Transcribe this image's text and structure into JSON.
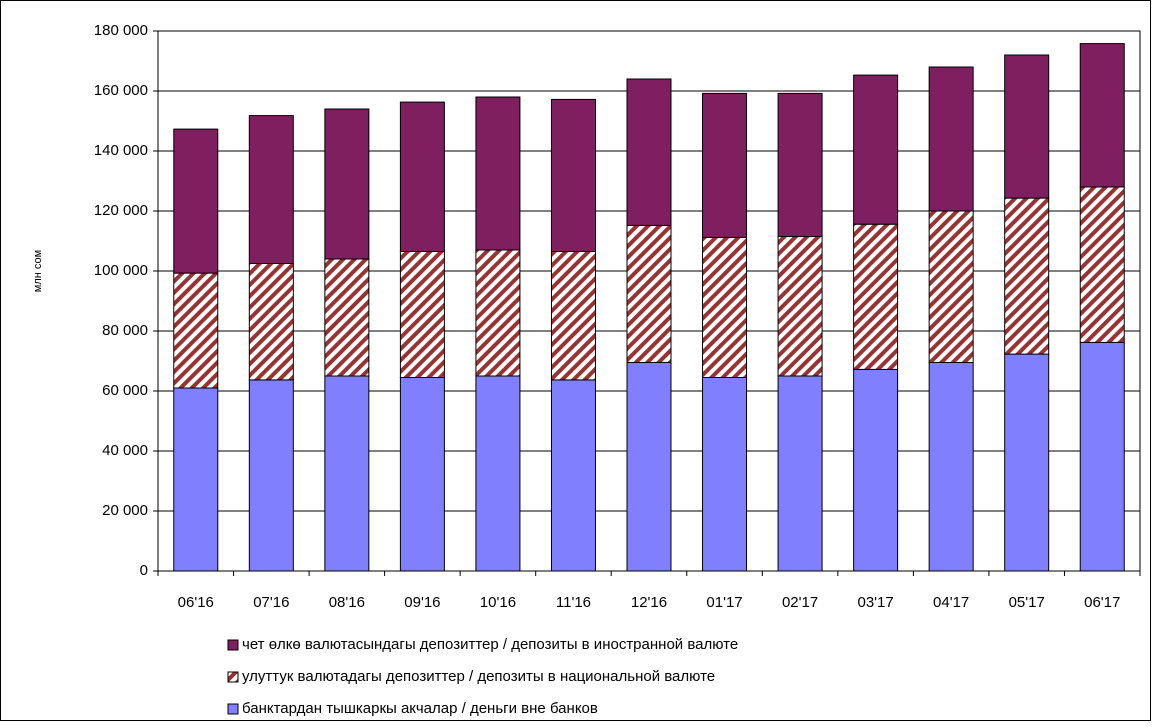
{
  "chart_data": {
    "type": "stacked_bar",
    "y_label": "млн сом",
    "categories": [
      "06'16",
      "07'16",
      "08'16",
      "09'16",
      "10'16",
      "11'16",
      "12'16",
      "01'17",
      "02'17",
      "03'17",
      "04'17",
      "05'17",
      "06'17"
    ],
    "series": [
      {
        "name": "банктардан тышкаркы акчалар / деньги вне банков",
        "color": "#8080ff",
        "values": [
          61000,
          63700,
          65000,
          64500,
          65000,
          63700,
          69500,
          64500,
          65000,
          67200,
          69500,
          72300,
          76200
        ]
      },
      {
        "name": "улуттук валютадагы депозиттер / депозиты в национальной валюте",
        "color": "#993333",
        "hatch": true,
        "values": [
          38300,
          38800,
          39000,
          42000,
          42000,
          42800,
          45700,
          46700,
          46500,
          48400,
          50500,
          52000,
          51800
        ]
      },
      {
        "name": "чет өлкө валютасындагы депозиттер / депозиты в иностранной валюте",
        "color": "#7f1f5f",
        "values": [
          48000,
          49300,
          50000,
          49800,
          51000,
          50700,
          48800,
          48000,
          47700,
          49700,
          48000,
          47700,
          47800
        ]
      }
    ],
    "ylim": [
      0,
      180000
    ],
    "yticks": [
      0,
      {
        "value": 20000,
        "label": "20 000"
      },
      {
        "value": 40000,
        "label": "40 000"
      },
      {
        "value": 60000,
        "label": "60 000"
      },
      {
        "value": 80000,
        "label": "80 000"
      },
      {
        "value": 100000,
        "label": "100 000"
      },
      {
        "value": 120000,
        "label": "120 000"
      },
      {
        "value": 140000,
        "label": "140 000"
      },
      {
        "value": 160000,
        "label": "160 000"
      },
      {
        "value": 180000,
        "label": "180 000"
      }
    ],
    "grid": true,
    "legend": "bottom"
  }
}
